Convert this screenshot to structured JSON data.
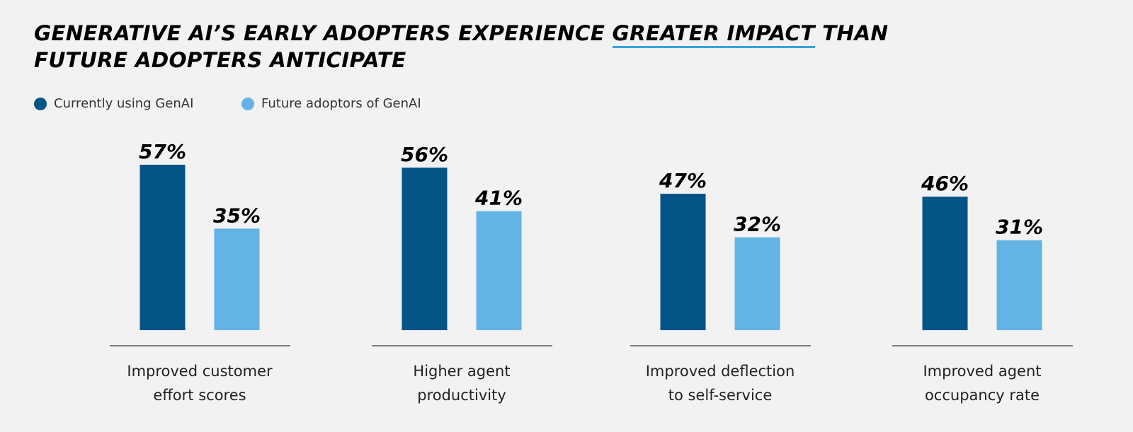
{
  "title": {
    "prefix": "GENERATIVE AI’S EARLY ADOPTERS EXPERIENCE ",
    "highlight": "GREATER IMPACT",
    "suffix": " THAN FUTURE ADOPTERS ANTICIPATE"
  },
  "legend": {
    "items": [
      {
        "label": "Currently using GenAI",
        "color": "#045487"
      },
      {
        "label": "Future adoptors of GenAI",
        "color": "#63b4e4"
      }
    ]
  },
  "chart_data": {
    "type": "bar",
    "title": "GENERATIVE AI’S EARLY ADOPTERS EXPERIENCE GREATER IMPACT THAN FUTURE ADOPTERS ANTICIPATE",
    "categories": [
      [
        "Improved customer",
        "effort scores"
      ],
      [
        "Higher agent",
        "productivity"
      ],
      [
        "Improved deflection",
        "to self-service"
      ],
      [
        "Improved agent",
        "occupancy rate"
      ]
    ],
    "series": [
      {
        "name": "Currently using GenAI",
        "values": [
          57,
          56,
          47,
          46
        ],
        "labels": [
          "57%",
          "56%",
          "47%",
          "46%"
        ],
        "color": "#045487"
      },
      {
        "name": "Future adoptors of GenAI",
        "values": [
          35,
          41,
          32,
          31
        ],
        "labels": [
          "35%",
          "41%",
          "32%",
          "31%"
        ],
        "color": "#63b4e4"
      }
    ],
    "xlabel": "",
    "ylabel": "",
    "ylim": [
      0,
      57
    ],
    "grid": false,
    "legend_position": "top-left"
  }
}
